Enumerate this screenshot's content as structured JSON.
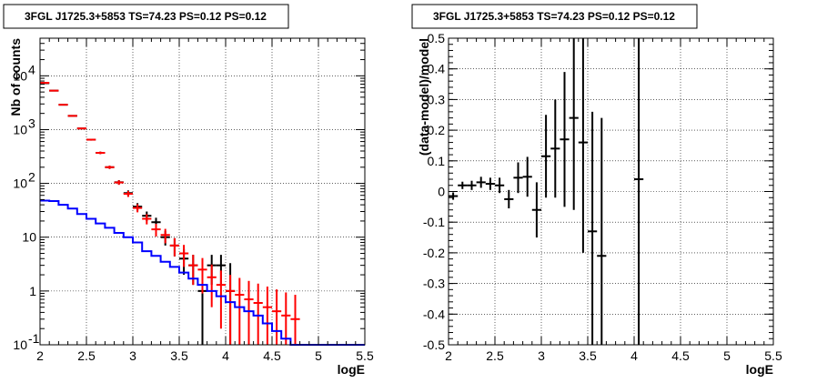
{
  "chart_data": [
    {
      "type": "line",
      "title": "3FGL J1725.3+5853 TS=74.23 PS=0.12 PS=0.12",
      "xlabel": "logE",
      "ylabel": "Nb of counts",
      "xlim": [
        2,
        5.5
      ],
      "ylim": [
        0.1,
        50000
      ],
      "yscale": "log",
      "grid": true,
      "x_ticks": [
        "2",
        "2.5",
        "3",
        "3.5",
        "4",
        "4.5",
        "5",
        "5.5"
      ],
      "y_ticks": [
        {
          "v": 0.1,
          "base": "10",
          "exp": "-1"
        },
        {
          "v": 1,
          "base": "1",
          "exp": ""
        },
        {
          "v": 10,
          "base": "10",
          "exp": ""
        },
        {
          "v": 100,
          "base": "10",
          "exp": "2"
        },
        {
          "v": 1000,
          "base": "10",
          "exp": "3"
        },
        {
          "v": 10000,
          "base": "10",
          "exp": "4"
        }
      ],
      "bin_width": 0.1,
      "series": [
        {
          "color": "#000000",
          "style": "errorbar",
          "x": [
            2.05,
            2.15,
            2.25,
            2.35,
            2.45,
            2.55,
            2.65,
            2.75,
            2.85,
            2.95,
            3.05,
            3.15,
            3.25,
            3.35,
            3.45,
            3.55,
            3.65,
            3.75,
            3.85,
            3.95,
            4.05
          ],
          "y": [
            7300,
            5300,
            2900,
            1800,
            1050,
            650,
            370,
            200,
            105,
            66,
            37,
            25,
            19,
            10,
            7,
            4,
            3,
            1,
            3,
            3,
            1
          ],
          "err_lo": [
            80,
            70,
            55,
            40,
            30,
            25,
            19,
            14,
            10,
            8,
            6,
            5,
            4,
            3,
            2.6,
            2,
            1.7,
            1,
            1.7,
            1.7,
            1
          ],
          "err_hi": [
            80,
            70,
            55,
            40,
            30,
            25,
            19,
            14,
            10,
            8,
            6,
            5,
            4,
            3,
            2.6,
            2,
            1.7,
            2.3,
            1.7,
            1.7,
            2.3
          ]
        },
        {
          "color": "#ff0000",
          "style": "errorbar",
          "x": [
            2.05,
            2.15,
            2.25,
            2.35,
            2.45,
            2.55,
            2.65,
            2.75,
            2.85,
            2.95,
            3.05,
            3.15,
            3.25,
            3.35,
            3.45,
            3.55,
            3.65,
            3.75,
            3.85,
            3.95,
            4.05,
            4.15,
            4.25,
            4.35,
            4.45,
            4.55,
            4.65,
            4.75
          ],
          "y": [
            7400,
            5300,
            2900,
            1800,
            1050,
            650,
            370,
            200,
            104,
            64,
            35,
            22,
            14,
            11,
            7,
            5,
            3,
            2.5,
            1.8,
            1.3,
            1,
            0.85,
            0.7,
            0.6,
            0.5,
            0.42,
            0.35,
            0.3
          ],
          "err_lo": [
            80,
            70,
            55,
            40,
            30,
            25,
            19,
            14,
            10,
            8,
            6,
            4.7,
            3.7,
            3.3,
            2.6,
            2.2,
            1.7,
            1.6,
            1.3,
            1.1,
            1,
            0.9,
            0.6,
            0.5,
            0.4,
            0.33,
            0.25,
            0.2
          ],
          "err_hi": [
            80,
            70,
            55,
            40,
            30,
            25,
            19,
            14,
            10,
            8,
            6,
            4.7,
            3.7,
            3.3,
            2.6,
            2.2,
            1.7,
            1.6,
            1.3,
            1.1,
            1,
            0.9,
            0.84,
            0.77,
            0.71,
            0.65,
            0.59,
            0.55
          ]
        },
        {
          "color": "#0000ff",
          "style": "step",
          "x": [
            2.05,
            2.15,
            2.25,
            2.35,
            2.45,
            2.55,
            2.65,
            2.75,
            2.85,
            2.95,
            3.05,
            3.15,
            3.25,
            3.35,
            3.45,
            3.55,
            3.65,
            3.75,
            3.85,
            3.95,
            4.05,
            4.15,
            4.25,
            4.35,
            4.45,
            4.55,
            4.65,
            4.75,
            4.85,
            4.95,
            5.05,
            5.15,
            5.25,
            5.35,
            5.45
          ],
          "y": [
            48,
            47,
            40,
            34,
            27,
            22,
            18,
            15,
            12,
            10,
            8,
            5.5,
            4.5,
            3.5,
            2.8,
            2.2,
            1.7,
            1.3,
            1.0,
            0.8,
            0.62,
            0.5,
            0.42,
            0.35,
            0.25,
            0.18,
            0.13,
            0.1,
            0.1,
            0.1,
            0.1,
            0.1,
            0.1,
            0.1,
            0.1
          ]
        }
      ]
    },
    {
      "type": "scatter",
      "title": "3FGL J1725.3+5853 TS=74.23 PS=0.12 PS=0.12",
      "xlabel": "logE",
      "ylabel": "(data-model)/model",
      "xlim": [
        2,
        5.5
      ],
      "ylim": [
        -0.5,
        0.5
      ],
      "grid": true,
      "x_ticks": [
        "2",
        "2.5",
        "3",
        "3.5",
        "4",
        "4.5",
        "5",
        "5.5"
      ],
      "y_ticks": [
        "-0.5",
        "-0.4",
        "-0.3",
        "-0.2",
        "-0.1",
        "0",
        "0.1",
        "0.2",
        "0.3",
        "0.4",
        "0.5"
      ],
      "bin_width": 0.1,
      "series": [
        {
          "color": "#000000",
          "style": "errorbar",
          "x": [
            2.05,
            2.15,
            2.25,
            2.35,
            2.45,
            2.55,
            2.65,
            2.75,
            2.85,
            2.95,
            3.05,
            3.15,
            3.25,
            3.35,
            3.45,
            3.55,
            3.65,
            4.05
          ],
          "y": [
            -0.015,
            0.02,
            0.02,
            0.03,
            0.025,
            0.02,
            -0.025,
            0.045,
            0.048,
            -0.06,
            0.115,
            0.14,
            0.17,
            0.24,
            0.16,
            -0.13,
            -0.21,
            0.04
          ],
          "err": [
            0.012,
            0.012,
            0.015,
            0.018,
            0.02,
            0.025,
            0.03,
            0.05,
            0.065,
            0.09,
            0.135,
            0.16,
            0.22,
            0.3,
            0.36,
            0.39,
            0.45,
            0.75
          ]
        }
      ]
    }
  ]
}
